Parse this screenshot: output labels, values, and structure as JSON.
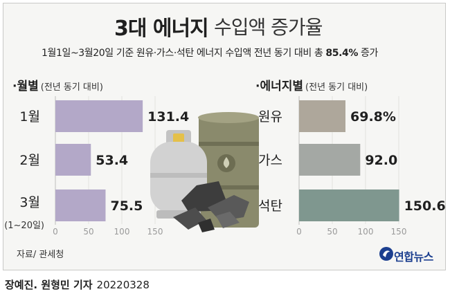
{
  "title": {
    "main": "3대 에너지",
    "rest": "수입액 증가율"
  },
  "subtitle": {
    "text": "1월1일~3월20일 기준 원유·가스·석탄 에너지 수입액 전년 동기 대비 총 ",
    "highlight": "85.4%",
    "tail": " 증가"
  },
  "chart_data": [
    {
      "type": "bar",
      "orientation": "horizontal",
      "title": "월별",
      "subtitle": "(전년 동기 대비)",
      "categories": [
        "1월",
        "2월",
        "3월"
      ],
      "category_note": "(1~20일)",
      "values": [
        131.4,
        53.4,
        75.5
      ],
      "value_labels": [
        "131.4",
        "53.4",
        "75.5"
      ],
      "xticks": [
        "0",
        "50",
        "100",
        "150"
      ],
      "xlim": [
        0,
        150
      ],
      "color": "#b3a8c8"
    },
    {
      "type": "bar",
      "orientation": "horizontal",
      "title": "에너지별",
      "subtitle": "(전년 동기 대비)",
      "categories": [
        "원유",
        "가스",
        "석탄"
      ],
      "values": [
        69.8,
        92.0,
        150.6
      ],
      "value_labels": [
        "69.8%",
        "92.0",
        "150.6"
      ],
      "xticks": [
        "0",
        "50",
        "100",
        "150"
      ],
      "xlim": [
        0,
        150
      ],
      "colors": [
        "#aea79b",
        "#a4a8a4",
        "#7f978f"
      ]
    }
  ],
  "source": "자료/ 관세청",
  "logo": "연합뉴스",
  "credit": {
    "names": "장예진. 원형민 기자",
    "date": "20220328"
  }
}
